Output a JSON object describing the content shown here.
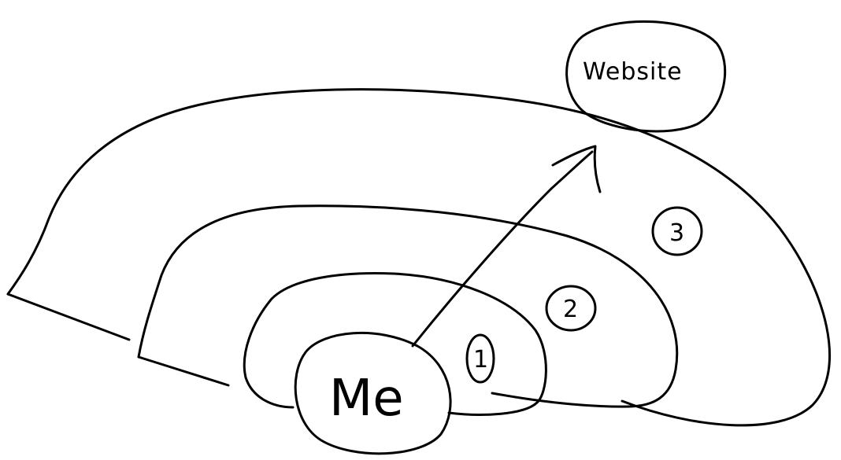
{
  "diagram": {
    "nodes": {
      "me": {
        "label": "Me"
      },
      "website": {
        "label": "Website"
      }
    },
    "rings": [
      {
        "label": "1"
      },
      {
        "label": "2"
      },
      {
        "label": "3"
      }
    ],
    "arrow": {
      "from": "Me",
      "to": "Website"
    }
  }
}
